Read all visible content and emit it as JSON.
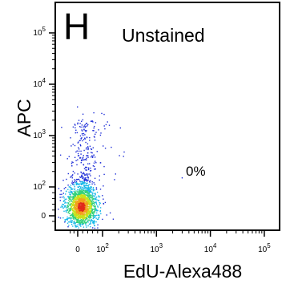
{
  "panel_letter": "H",
  "sample_label": "Unstained",
  "gate_percent": "0%",
  "chart_data": {
    "type": "scatter",
    "style": "density-colored flow cytometry dot plot",
    "xlabel": "EdU-Alexa488",
    "ylabel": "APC",
    "x_scale": "biexponential",
    "y_scale": "biexponential",
    "x_ticks": [
      {
        "label": "0",
        "sup": "",
        "value": 0
      },
      {
        "label": "10",
        "sup": "2",
        "value": 100
      },
      {
        "label": "10",
        "sup": "3",
        "value": 1000
      },
      {
        "label": "10",
        "sup": "4",
        "value": 10000
      },
      {
        "label": "10",
        "sup": "5",
        "value": 100000
      }
    ],
    "y_ticks": [
      {
        "label": "0",
        "sup": "",
        "value": 0
      },
      {
        "label": "10",
        "sup": "2",
        "value": 100
      },
      {
        "label": "10",
        "sup": "3",
        "value": 1000
      },
      {
        "label": "10",
        "sup": "4",
        "value": 10000
      },
      {
        "label": "10",
        "sup": "5",
        "value": 100000
      }
    ],
    "population": {
      "center_x": 0,
      "center_y": 0,
      "approx_x_range": [
        -150,
        150
      ],
      "approx_y_range": [
        -200,
        2000
      ]
    },
    "gate_annotation": {
      "text": "0%",
      "x": 3000,
      "y": 150
    },
    "density_colors": [
      "#1f2fd8",
      "#19b8e8",
      "#33d17a",
      "#c8e21a",
      "#f2a21a",
      "#e02a1a"
    ],
    "grid": false,
    "legend": "none"
  }
}
